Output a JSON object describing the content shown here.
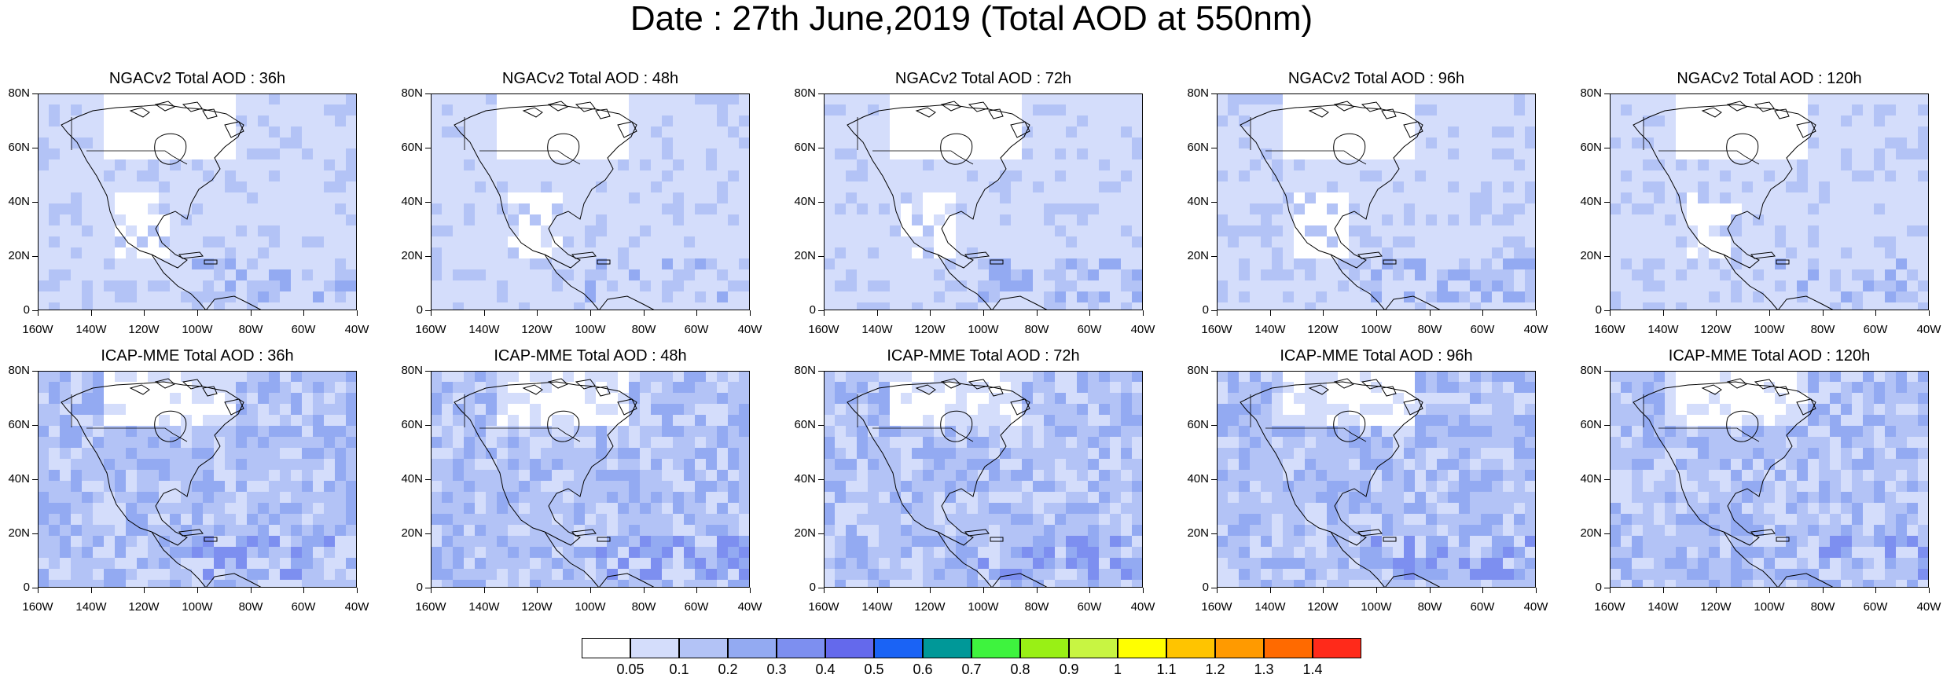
{
  "title": "Date : 27th June,2019 (Total AOD at 550nm)",
  "panels": [
    {
      "title": "NGACv2 Total AOD : 36h"
    },
    {
      "title": "NGACv2 Total AOD : 48h"
    },
    {
      "title": "NGACv2 Total AOD : 72h"
    },
    {
      "title": "NGACv2 Total AOD : 96h"
    },
    {
      "title": "NGACv2 Total AOD : 120h"
    },
    {
      "title": "ICAP-MME Total AOD : 36h"
    },
    {
      "title": "ICAP-MME Total AOD : 48h"
    },
    {
      "title": "ICAP-MME Total AOD : 72h"
    },
    {
      "title": "ICAP-MME Total AOD : 96h"
    },
    {
      "title": "ICAP-MME Total AOD : 120h"
    }
  ],
  "axes": {
    "lat_labels": [
      "80N",
      "60N",
      "40N",
      "20N",
      "0"
    ],
    "lon_labels": [
      "160W",
      "140W",
      "120W",
      "100W",
      "80W",
      "60W",
      "40W"
    ]
  },
  "colorbar": {
    "labels": [
      "0.05",
      "0.1",
      "0.2",
      "0.3",
      "0.4",
      "0.5",
      "0.6",
      "0.7",
      "0.8",
      "0.9",
      "1",
      "1.1",
      "1.2",
      "1.3",
      "1.4"
    ],
    "colors": [
      "#ffffff",
      "#d4ddfb",
      "#b3c3f6",
      "#93aaf2",
      "#7d8ff0",
      "#6469ec",
      "#1a63f5",
      "#009898",
      "#3ef33e",
      "#99f015",
      "#c8f542",
      "#ffff00",
      "#ffc400",
      "#ff9a00",
      "#ff6a00",
      "#ff2a1a"
    ]
  }
}
